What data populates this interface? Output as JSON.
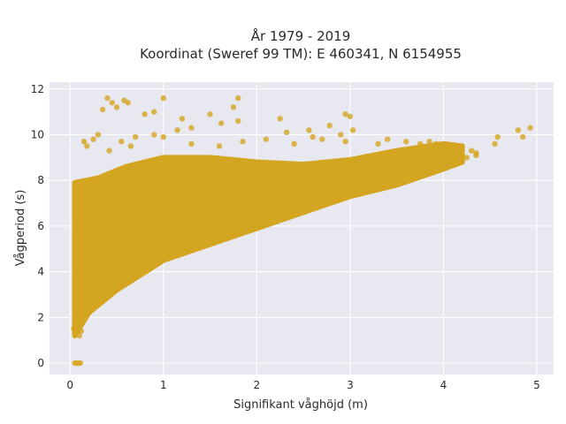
{
  "chart_data": {
    "type": "scatter",
    "title_line1": "År 1979 - 2019",
    "title_line2": "Koordinat (Sweref 99 TM): E 460341, N 6154955",
    "xlabel": "Signifikant våghöjd (m)",
    "ylabel": "Vågperiod (s)",
    "xlim": [
      -0.22,
      5.18
    ],
    "ylim": [
      -0.5,
      12.3
    ],
    "x_ticks": [
      0,
      1,
      2,
      3,
      4,
      5
    ],
    "y_ticks": [
      0,
      2,
      4,
      6,
      8,
      10,
      12
    ],
    "grid": true,
    "plot_background": "#e8e8f0",
    "marker_color": "#d4a520",
    "marker_opacity": 0.8,
    "lower_envelope": [
      [
        0.05,
        1.2
      ],
      [
        0.2,
        2.2
      ],
      [
        0.5,
        3.2
      ],
      [
        1.0,
        4.5
      ],
      [
        1.5,
        5.2
      ],
      [
        2.0,
        5.9
      ],
      [
        2.5,
        6.6
      ],
      [
        3.0,
        7.3
      ],
      [
        3.5,
        7.8
      ],
      [
        4.0,
        8.5
      ],
      [
        4.2,
        8.8
      ]
    ],
    "upper_envelope": [
      [
        0.05,
        7.9
      ],
      [
        0.3,
        8.1
      ],
      [
        0.6,
        8.6
      ],
      [
        1.0,
        9.0
      ],
      [
        1.5,
        9.0
      ],
      [
        2.0,
        8.8
      ],
      [
        2.5,
        8.7
      ],
      [
        3.0,
        8.9
      ],
      [
        3.5,
        9.3
      ],
      [
        4.0,
        9.6
      ],
      [
        4.2,
        9.5
      ]
    ],
    "points": [
      [
        0.05,
        0.0
      ],
      [
        0.07,
        0.0
      ],
      [
        0.09,
        0.0
      ],
      [
        0.11,
        0.0
      ],
      [
        0.04,
        1.5
      ],
      [
        0.06,
        1.3
      ],
      [
        0.1,
        1.2
      ],
      [
        0.12,
        1.4
      ],
      [
        0.08,
        1.8
      ],
      [
        0.4,
        11.6
      ],
      [
        0.45,
        11.4
      ],
      [
        0.58,
        11.5
      ],
      [
        0.62,
        11.4
      ],
      [
        1.0,
        11.6
      ],
      [
        1.8,
        11.6
      ],
      [
        1.75,
        11.2
      ],
      [
        0.35,
        11.1
      ],
      [
        0.5,
        11.2
      ],
      [
        0.8,
        10.9
      ],
      [
        0.9,
        11.0
      ],
      [
        1.2,
        10.7
      ],
      [
        1.5,
        10.9
      ],
      [
        1.8,
        10.6
      ],
      [
        1.15,
        10.2
      ],
      [
        1.3,
        10.3
      ],
      [
        1.62,
        10.5
      ],
      [
        2.25,
        10.7
      ],
      [
        2.32,
        10.1
      ],
      [
        2.56,
        10.2
      ],
      [
        2.78,
        10.4
      ],
      [
        2.95,
        10.9
      ],
      [
        3.0,
        10.8
      ],
      [
        3.03,
        10.2
      ],
      [
        2.6,
        9.9
      ],
      [
        2.9,
        10.0
      ],
      [
        0.15,
        9.7
      ],
      [
        0.25,
        9.8
      ],
      [
        0.3,
        10.0
      ],
      [
        0.55,
        9.7
      ],
      [
        0.7,
        9.9
      ],
      [
        0.9,
        10.0
      ],
      [
        1.0,
        9.9
      ],
      [
        0.18,
        9.5
      ],
      [
        0.42,
        9.3
      ],
      [
        0.65,
        9.5
      ],
      [
        1.3,
        9.6
      ],
      [
        1.6,
        9.5
      ],
      [
        1.85,
        9.7
      ],
      [
        2.1,
        9.8
      ],
      [
        2.4,
        9.6
      ],
      [
        2.7,
        9.8
      ],
      [
        2.95,
        9.7
      ],
      [
        3.3,
        9.6
      ],
      [
        3.4,
        9.8
      ],
      [
        3.6,
        9.7
      ],
      [
        3.75,
        9.6
      ],
      [
        3.85,
        9.7
      ],
      [
        3.92,
        9.6
      ],
      [
        4.0,
        9.4
      ],
      [
        4.05,
        9.5
      ],
      [
        4.1,
        9.3
      ],
      [
        4.2,
        9.5
      ],
      [
        4.3,
        9.3
      ],
      [
        4.35,
        9.2
      ],
      [
        4.55,
        9.6
      ],
      [
        4.58,
        9.9
      ],
      [
        4.8,
        10.2
      ],
      [
        4.85,
        9.9
      ],
      [
        4.93,
        10.3
      ],
      [
        3.5,
        8.6
      ],
      [
        3.7,
        8.8
      ],
      [
        3.9,
        9.0
      ],
      [
        3.3,
        8.4
      ],
      [
        3.1,
        8.1
      ],
      [
        3.6,
        8.2
      ],
      [
        3.8,
        8.5
      ],
      [
        4.2,
        8.8
      ],
      [
        4.25,
        9.0
      ],
      [
        4.35,
        9.1
      ],
      [
        4.0,
        8.9
      ],
      [
        4.1,
        9.1
      ]
    ]
  }
}
